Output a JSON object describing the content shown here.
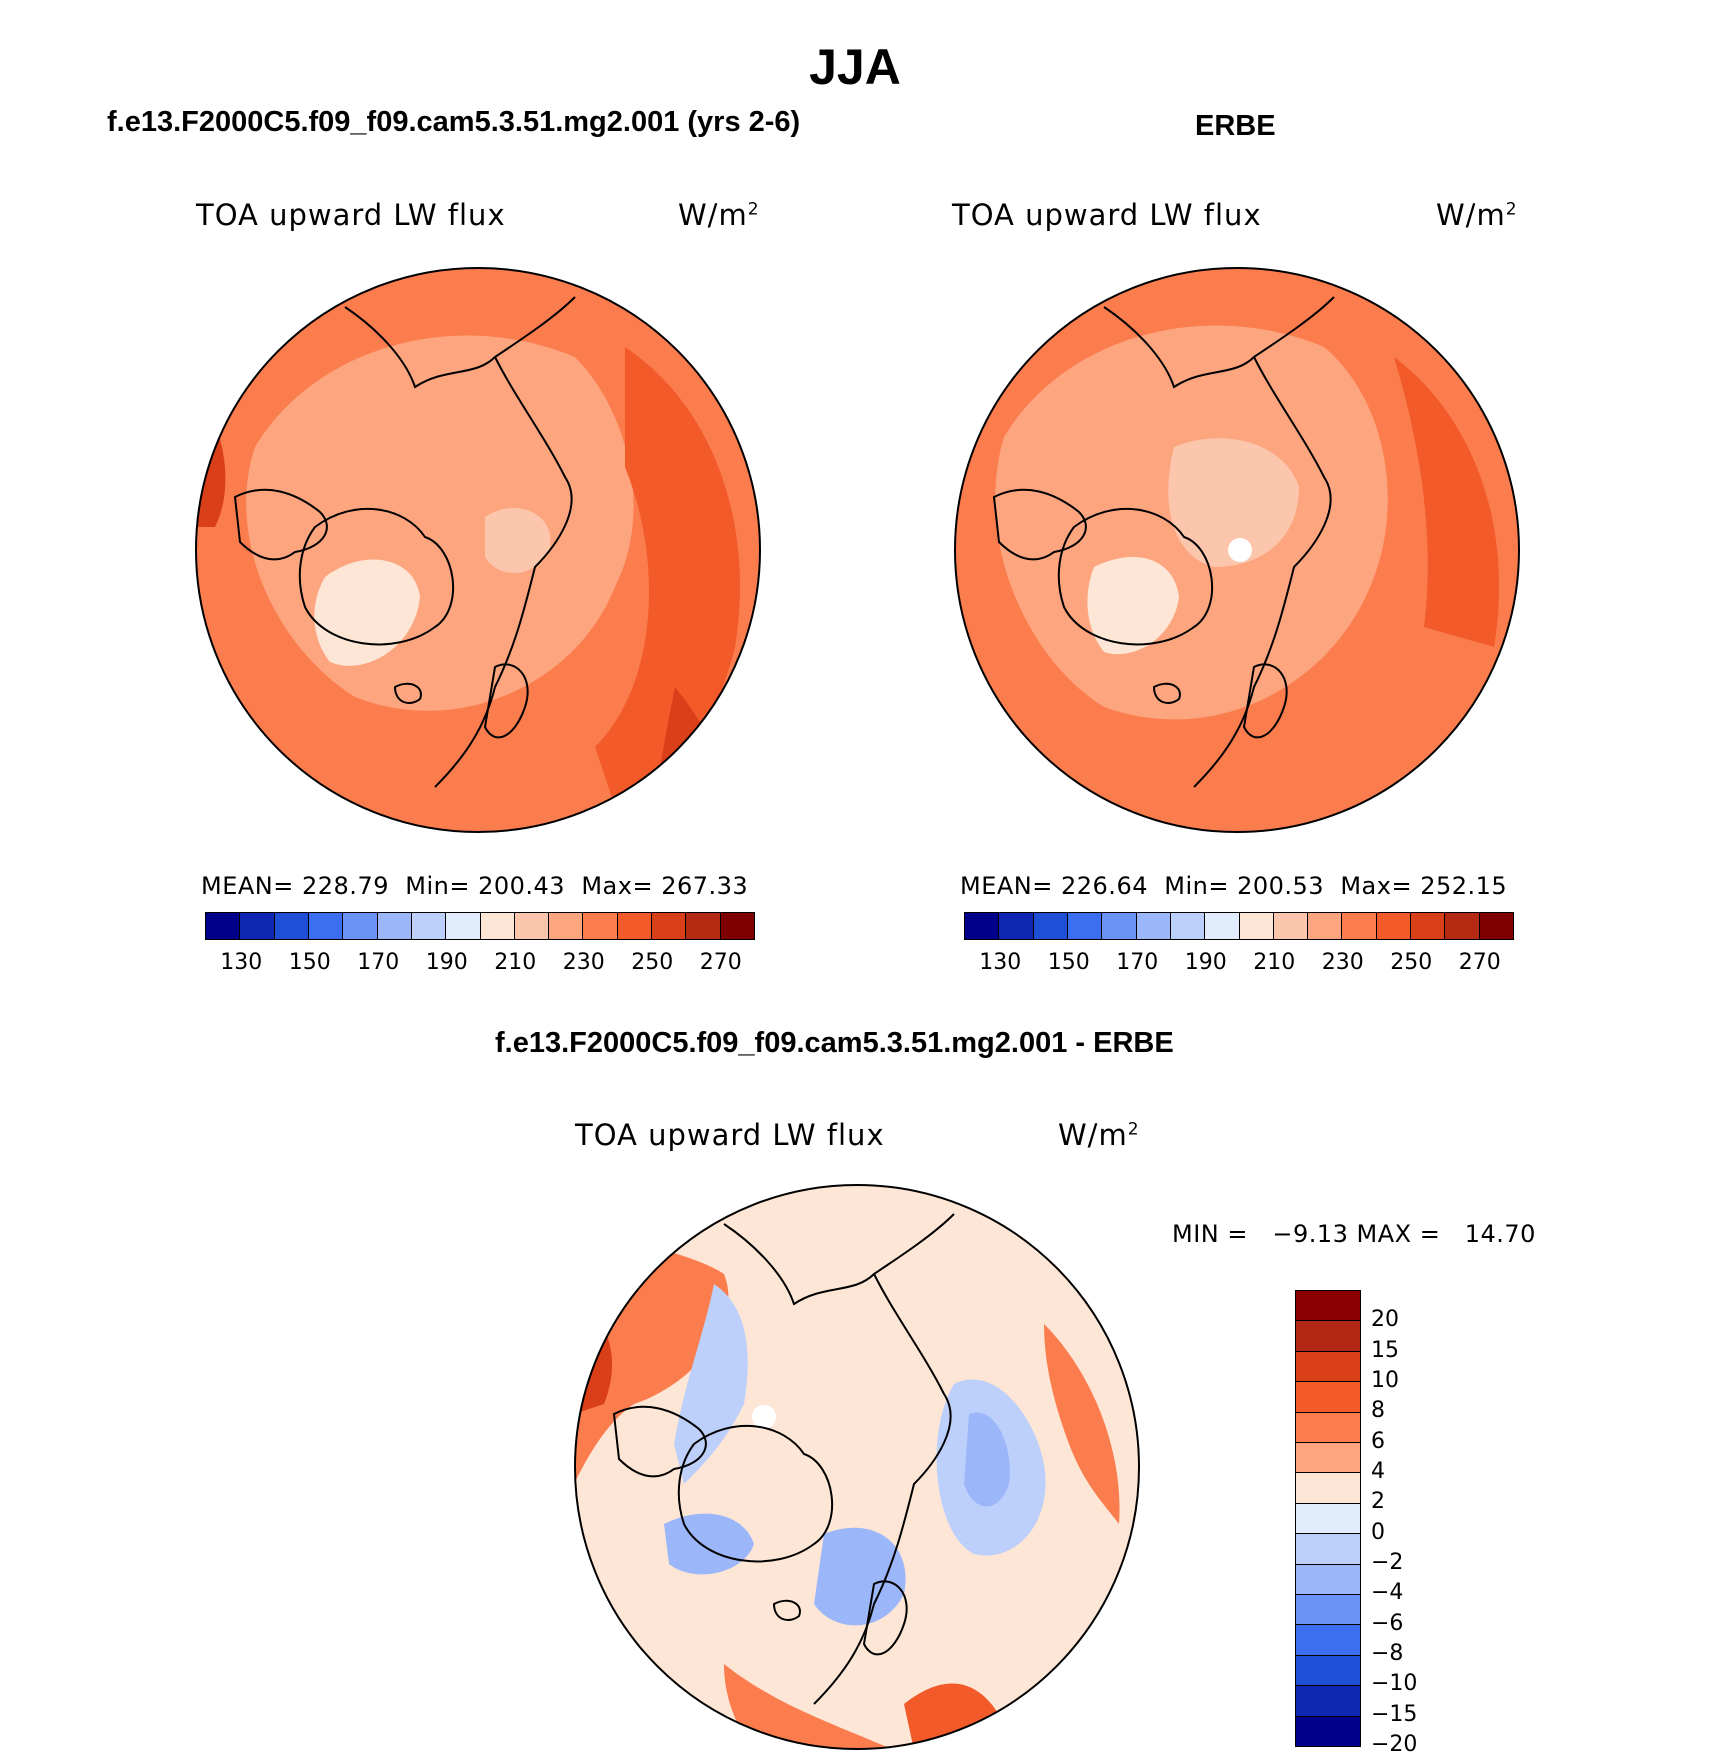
{
  "title": "JJA",
  "panels": [
    {
      "id": "model",
      "subtitle": "f.e13.F2000C5.f09_f09.cam5.3.51.mg2.001 (yrs 2-6)",
      "variable": "TOA upward LW flux",
      "units_base": "W/m",
      "units_exp": "2",
      "mean_label": "MEAN=",
      "mean": "228.79",
      "min_label": "Min=",
      "min": "200.43",
      "max_label": "Max=",
      "max": "267.33"
    },
    {
      "id": "obs",
      "subtitle": "ERBE",
      "variable": "TOA upward LW flux",
      "units_base": "W/m",
      "units_exp": "2",
      "mean_label": "MEAN=",
      "mean": "226.64",
      "min_label": "Min=",
      "min": "200.53",
      "max_label": "Max=",
      "max": "252.15"
    }
  ],
  "abs_colorbar": {
    "colors": [
      "#00008b",
      "#0d27b3",
      "#1e4fd6",
      "#3c6ef0",
      "#6b92f5",
      "#9cb6fa",
      "#bdd0fb",
      "#e1ecfc",
      "#fde6d6",
      "#fcc6ad",
      "#fca57f",
      "#fb7d4e",
      "#f25a2a",
      "#d9401a",
      "#b52a12",
      "#7f0000"
    ],
    "ticks": [
      "130",
      "150",
      "170",
      "190",
      "210",
      "230",
      "250",
      "270"
    ]
  },
  "diff": {
    "subtitle": "f.e13.F2000C5.f09_f09.cam5.3.51.mg2.001 - ERBE",
    "variable": "TOA upward LW flux",
    "units_base": "W/m",
    "units_exp": "2",
    "stats_text": "MIN =   −9.13 MAX =   14.70",
    "colorbar": {
      "colors": [
        "#8b0000",
        "#b32814",
        "#d9401a",
        "#f25a2a",
        "#fb7d4e",
        "#fca57f",
        "#fde6d6",
        "#e1ecfc",
        "#bdd0fb",
        "#9cb6fa",
        "#6b92f5",
        "#3c6ef0",
        "#1e4fd6",
        "#0d27b3",
        "#00008b"
      ],
      "ticks": [
        "20",
        "15",
        "10",
        "8",
        "6",
        "4",
        "2",
        "0",
        "−2",
        "−4",
        "−6",
        "−8",
        "−10",
        "−15",
        "−20"
      ]
    }
  },
  "colors": {
    "model_base": "#fca57f",
    "model_warm": "#fb7d4e",
    "model_hot": "#f25a2a",
    "model_hottest": "#d9401a",
    "light": "#fcc6ad",
    "lightest": "#fde6d6",
    "diff_base": "#fde6d6",
    "diff_blue": "#bdd0fb",
    "diff_blue2": "#9cb6fa",
    "diff_blue3": "#6b92f5",
    "diff_red": "#fb7d4e",
    "diff_red2": "#f25a2a",
    "diff_red3": "#d9401a"
  }
}
